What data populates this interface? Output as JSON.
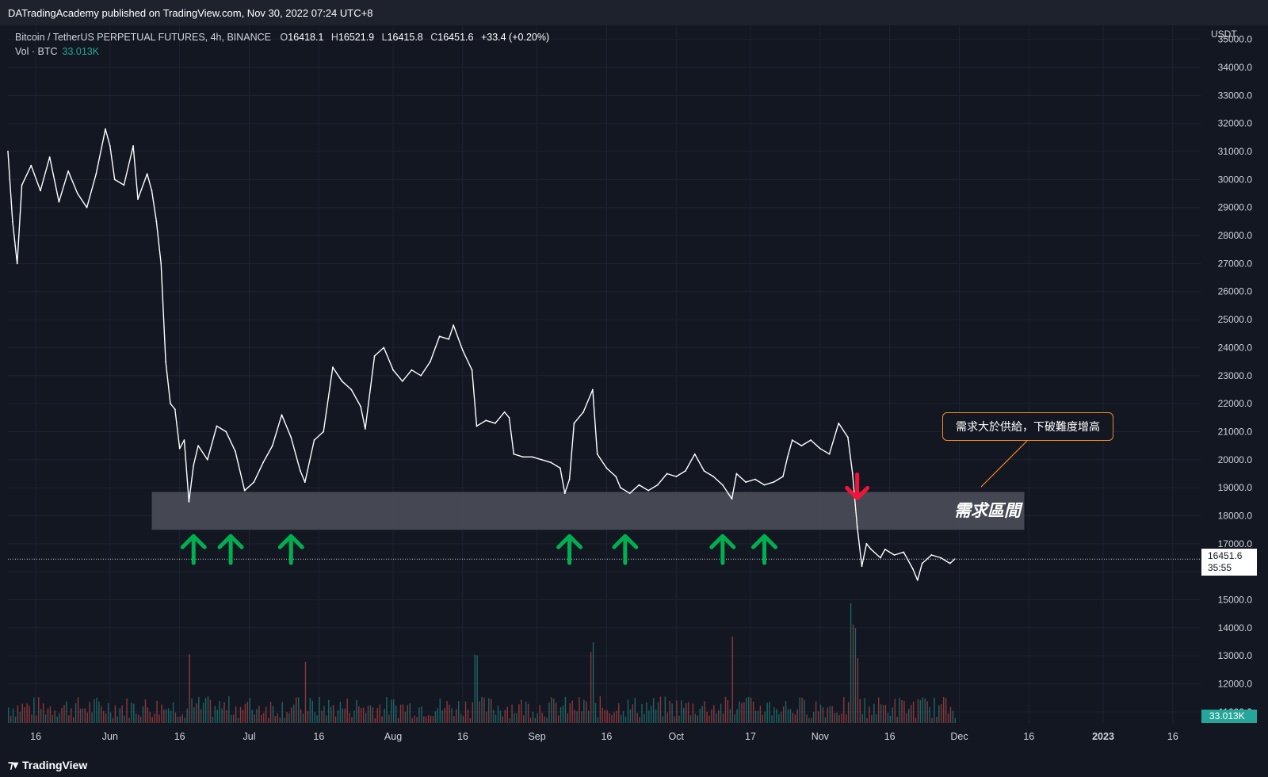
{
  "header": {
    "published_line": "DATradingAcademy published on TradingView.com, Nov 30, 2022 07:24 UTC+8"
  },
  "legend": {
    "symbol": "Bitcoin / TetherUS PERPETUAL FUTURES, 4h, BINANCE",
    "o_label": "O",
    "o_value": "16418.1",
    "h_label": "H",
    "h_value": "16521.9",
    "l_label": "L",
    "l_value": "16415.8",
    "c_label": "C",
    "c_value": "16451.6",
    "change": "+33.4 (+0.20%)",
    "vol_label": "Vol · BTC",
    "vol_value": "33.013K"
  },
  "price_axis": {
    "currency": "USDT",
    "last_price": "16451.6",
    "countdown": "35:55",
    "volume_tag": "33.013K"
  },
  "annotations": {
    "callout_text": "需求大於供給，下破難度增高",
    "zone_label": "需求區間"
  },
  "footer": {
    "brand": "TradingView"
  },
  "colors": {
    "background": "#131722",
    "price_line": "#ffffff",
    "zone_fill": "#4a4d57",
    "up_arrow": "#00b050",
    "down_arrow": "#f0143c",
    "callout_border": "#f28c1e",
    "volume_up": "#26a69a",
    "volume_down": "#ef5350"
  },
  "chart_data": {
    "type": "line",
    "title": "Bitcoin / TetherUS PERPETUAL FUTURES, 4h, BINANCE",
    "xlabel": "",
    "ylabel": "USDT",
    "ylim": [
      10600,
      35500
    ],
    "xlim": [
      "2022-05-10",
      "2023-01-22"
    ],
    "grid": true,
    "x_ticks": [
      {
        "date": "2022-05-16",
        "label": "16"
      },
      {
        "date": "2022-06-01",
        "label": "Jun"
      },
      {
        "date": "2022-06-16",
        "label": "16"
      },
      {
        "date": "2022-07-01",
        "label": "Jul"
      },
      {
        "date": "2022-07-16",
        "label": "16"
      },
      {
        "date": "2022-08-01",
        "label": "Aug"
      },
      {
        "date": "2022-08-16",
        "label": "16"
      },
      {
        "date": "2022-09-01",
        "label": "Sep"
      },
      {
        "date": "2022-09-16",
        "label": "16"
      },
      {
        "date": "2022-10-01",
        "label": "Oct"
      },
      {
        "date": "2022-10-17",
        "label": "17"
      },
      {
        "date": "2022-11-01",
        "label": "Nov"
      },
      {
        "date": "2022-11-16",
        "label": "16"
      },
      {
        "date": "2022-12-01",
        "label": "Dec"
      },
      {
        "date": "2022-12-16",
        "label": "16"
      },
      {
        "date": "2023-01-01",
        "label": "2023"
      },
      {
        "date": "2023-01-16",
        "label": "16"
      }
    ],
    "y_ticks": [
      {
        "value": 35000,
        "label": "35000.0"
      },
      {
        "value": 34000,
        "label": "34000.0"
      },
      {
        "value": 33000,
        "label": "33000.0"
      },
      {
        "value": 32000,
        "label": "32000.0"
      },
      {
        "value": 31000,
        "label": "31000.0"
      },
      {
        "value": 30000,
        "label": "30000.0"
      },
      {
        "value": 29000,
        "label": "29000.0"
      },
      {
        "value": 28000,
        "label": "28000.0"
      },
      {
        "value": 27000,
        "label": "27000.0"
      },
      {
        "value": 26000,
        "label": "26000.0"
      },
      {
        "value": 25000,
        "label": "25000.0"
      },
      {
        "value": 24000,
        "label": "24000.0"
      },
      {
        "value": 23000,
        "label": "23000.0"
      },
      {
        "value": 22000,
        "label": "22000.0"
      },
      {
        "value": 21000,
        "label": "21000.0"
      },
      {
        "value": 20000,
        "label": "20000.0"
      },
      {
        "value": 19000,
        "label": "19000.0"
      },
      {
        "value": 18000,
        "label": "18000.0"
      },
      {
        "value": 17000,
        "label": "17000.0"
      },
      {
        "value": 16000,
        "label": "16000.0"
      },
      {
        "value": 15000,
        "label": "15000.0"
      },
      {
        "value": 14000,
        "label": "14000.0"
      },
      {
        "value": 13000,
        "label": "13000.0"
      },
      {
        "value": 12000,
        "label": "12000.0"
      },
      {
        "value": 11000,
        "label": "11000.0"
      }
    ],
    "series": [
      {
        "points": [
          [
            "2022-05-10",
            31000
          ],
          [
            "2022-05-11",
            28500
          ],
          [
            "2022-05-12",
            27000
          ],
          [
            "2022-05-13",
            29800
          ],
          [
            "2022-05-15",
            30500
          ],
          [
            "2022-05-17",
            29600
          ],
          [
            "2022-05-19",
            30800
          ],
          [
            "2022-05-21",
            29200
          ],
          [
            "2022-05-23",
            30300
          ],
          [
            "2022-05-25",
            29500
          ],
          [
            "2022-05-27",
            29000
          ],
          [
            "2022-05-29",
            30200
          ],
          [
            "2022-05-31",
            31800
          ],
          [
            "2022-06-01",
            31200
          ],
          [
            "2022-06-02",
            30000
          ],
          [
            "2022-06-04",
            29800
          ],
          [
            "2022-06-06",
            31200
          ],
          [
            "2022-06-07",
            29300
          ],
          [
            "2022-06-09",
            30200
          ],
          [
            "2022-06-10",
            29600
          ],
          [
            "2022-06-11",
            28500
          ],
          [
            "2022-06-12",
            27000
          ],
          [
            "2022-06-13",
            23500
          ],
          [
            "2022-06-14",
            22000
          ],
          [
            "2022-06-15",
            21800
          ],
          [
            "2022-06-16",
            20400
          ],
          [
            "2022-06-17",
            20700
          ],
          [
            "2022-06-18",
            18500
          ],
          [
            "2022-06-19",
            19800
          ],
          [
            "2022-06-20",
            20500
          ],
          [
            "2022-06-22",
            20000
          ],
          [
            "2022-06-24",
            21200
          ],
          [
            "2022-06-26",
            21000
          ],
          [
            "2022-06-28",
            20300
          ],
          [
            "2022-06-30",
            18900
          ],
          [
            "2022-07-02",
            19200
          ],
          [
            "2022-07-04",
            19900
          ],
          [
            "2022-07-06",
            20500
          ],
          [
            "2022-07-08",
            21600
          ],
          [
            "2022-07-10",
            20800
          ],
          [
            "2022-07-12",
            19600
          ],
          [
            "2022-07-13",
            19200
          ],
          [
            "2022-07-15",
            20700
          ],
          [
            "2022-07-17",
            21000
          ],
          [
            "2022-07-19",
            23300
          ],
          [
            "2022-07-21",
            22800
          ],
          [
            "2022-07-23",
            22500
          ],
          [
            "2022-07-25",
            21900
          ],
          [
            "2022-07-26",
            21100
          ],
          [
            "2022-07-28",
            23700
          ],
          [
            "2022-07-30",
            24000
          ],
          [
            "2022-08-01",
            23200
          ],
          [
            "2022-08-03",
            22800
          ],
          [
            "2022-08-05",
            23200
          ],
          [
            "2022-08-07",
            23000
          ],
          [
            "2022-08-09",
            23500
          ],
          [
            "2022-08-11",
            24400
          ],
          [
            "2022-08-13",
            24300
          ],
          [
            "2022-08-14",
            24800
          ],
          [
            "2022-08-16",
            23900
          ],
          [
            "2022-08-18",
            23200
          ],
          [
            "2022-08-19",
            21200
          ],
          [
            "2022-08-21",
            21400
          ],
          [
            "2022-08-23",
            21300
          ],
          [
            "2022-08-25",
            21700
          ],
          [
            "2022-08-26",
            21500
          ],
          [
            "2022-08-27",
            20200
          ],
          [
            "2022-08-29",
            20100
          ],
          [
            "2022-08-31",
            20100
          ],
          [
            "2022-09-02",
            20000
          ],
          [
            "2022-09-04",
            19900
          ],
          [
            "2022-09-06",
            19700
          ],
          [
            "2022-09-07",
            18800
          ],
          [
            "2022-09-08",
            19300
          ],
          [
            "2022-09-09",
            21300
          ],
          [
            "2022-09-11",
            21700
          ],
          [
            "2022-09-13",
            22500
          ],
          [
            "2022-09-14",
            20200
          ],
          [
            "2022-09-16",
            19700
          ],
          [
            "2022-09-18",
            19400
          ],
          [
            "2022-09-19",
            19000
          ],
          [
            "2022-09-21",
            18800
          ],
          [
            "2022-09-23",
            19100
          ],
          [
            "2022-09-25",
            18900
          ],
          [
            "2022-09-27",
            19100
          ],
          [
            "2022-09-29",
            19500
          ],
          [
            "2022-10-01",
            19400
          ],
          [
            "2022-10-03",
            19600
          ],
          [
            "2022-10-05",
            20200
          ],
          [
            "2022-10-07",
            19600
          ],
          [
            "2022-10-09",
            19400
          ],
          [
            "2022-10-11",
            19100
          ],
          [
            "2022-10-13",
            18600
          ],
          [
            "2022-10-14",
            19500
          ],
          [
            "2022-10-16",
            19200
          ],
          [
            "2022-10-18",
            19300
          ],
          [
            "2022-10-20",
            19100
          ],
          [
            "2022-10-22",
            19200
          ],
          [
            "2022-10-24",
            19400
          ],
          [
            "2022-10-25",
            20100
          ],
          [
            "2022-10-26",
            20700
          ],
          [
            "2022-10-28",
            20500
          ],
          [
            "2022-10-30",
            20700
          ],
          [
            "2022-11-01",
            20400
          ],
          [
            "2022-11-03",
            20200
          ],
          [
            "2022-11-05",
            21300
          ],
          [
            "2022-11-07",
            20800
          ],
          [
            "2022-11-08",
            19500
          ],
          [
            "2022-11-09",
            17600
          ],
          [
            "2022-11-10",
            16200
          ],
          [
            "2022-11-11",
            17000
          ],
          [
            "2022-11-12",
            16800
          ],
          [
            "2022-11-14",
            16500
          ],
          [
            "2022-11-15",
            16800
          ],
          [
            "2022-11-17",
            16600
          ],
          [
            "2022-11-19",
            16700
          ],
          [
            "2022-11-21",
            16100
          ],
          [
            "2022-11-22",
            15700
          ],
          [
            "2022-11-23",
            16300
          ],
          [
            "2022-11-25",
            16600
          ],
          [
            "2022-11-27",
            16500
          ],
          [
            "2022-11-29",
            16300
          ],
          [
            "2022-11-30",
            16451.6
          ]
        ]
      }
    ],
    "last_price": 16451.6,
    "demand_zone": {
      "from": "2022-06-10",
      "to": "2022-12-15",
      "low": 17500,
      "high": 18850,
      "label": "需求區間"
    },
    "up_arrows": [
      "2022-06-19",
      "2022-06-27",
      "2022-07-10",
      "2022-09-08",
      "2022-09-20",
      "2022-10-11",
      "2022-10-20"
    ],
    "down_arrow": "2022-11-09",
    "volume": {
      "label": "Vol · BTC",
      "last": 33.013,
      "unit": "K",
      "spikes": [
        [
          "2022-06-13",
          1.5
        ],
        [
          "2022-06-18",
          1.3
        ],
        [
          "2022-07-13",
          1.1
        ],
        [
          "2022-08-19",
          1.2
        ],
        [
          "2022-09-13",
          1.1
        ],
        [
          "2022-09-19",
          1.0
        ],
        [
          "2022-10-13",
          1.2
        ],
        [
          "2022-11-08",
          2.2
        ],
        [
          "2022-11-09",
          1.9
        ],
        [
          "2022-11-10",
          1.6
        ]
      ]
    }
  }
}
